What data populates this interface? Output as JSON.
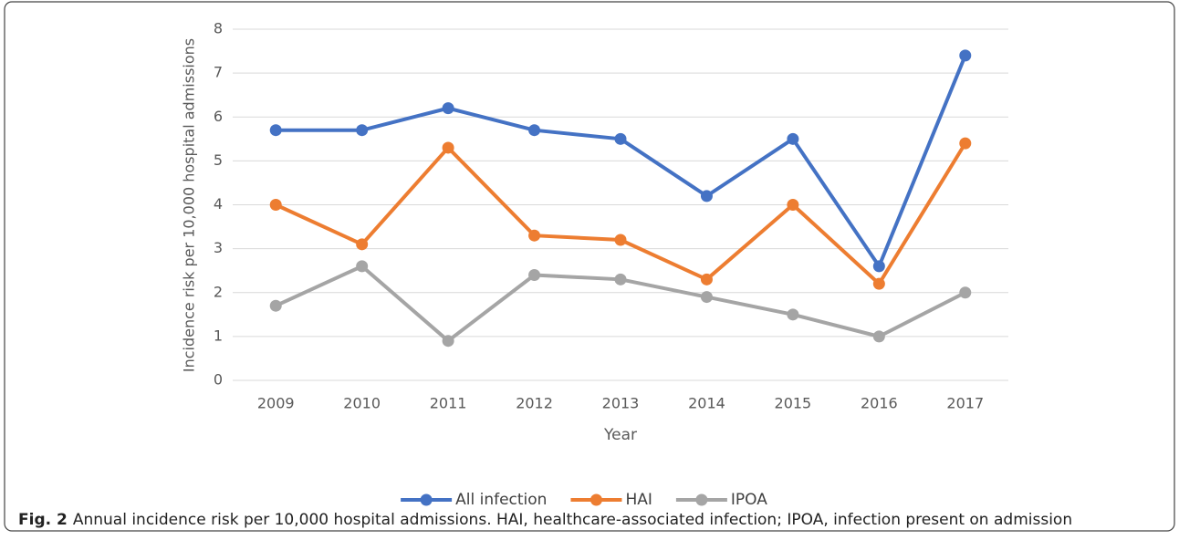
{
  "chart_data": {
    "type": "line",
    "y_label": "Incidence risk per 10,000 hospital admissions",
    "x_label": "Year",
    "categories": [
      "2009",
      "2010",
      "2011",
      "2012",
      "2013",
      "2014",
      "2015",
      "2016",
      "2017"
    ],
    "series": [
      {
        "name": "All infection",
        "color": "#4472c4",
        "values": [
          5.7,
          5.7,
          6.2,
          5.7,
          5.5,
          4.2,
          5.5,
          2.6,
          7.4
        ]
      },
      {
        "name": "HAI",
        "color": "#ed7d31",
        "values": [
          4.0,
          3.1,
          5.3,
          3.3,
          3.2,
          2.3,
          4.0,
          2.2,
          5.4
        ]
      },
      {
        "name": "IPOA",
        "color": "#a5a5a5",
        "values": [
          1.7,
          2.6,
          0.9,
          2.4,
          2.3,
          1.9,
          1.5,
          1.0,
          2.0
        ]
      }
    ],
    "ylim": [
      0,
      8
    ],
    "yticks": [
      0,
      1,
      2,
      3,
      4,
      5,
      6,
      7,
      8
    ],
    "grid": true,
    "legend": "bottom",
    "caption_label": "Fig. 2",
    "caption_text": "Annual incidence risk per 10,000 hospital admissions. HAI, healthcare-associated infection; IPOA, infection present on admission"
  }
}
